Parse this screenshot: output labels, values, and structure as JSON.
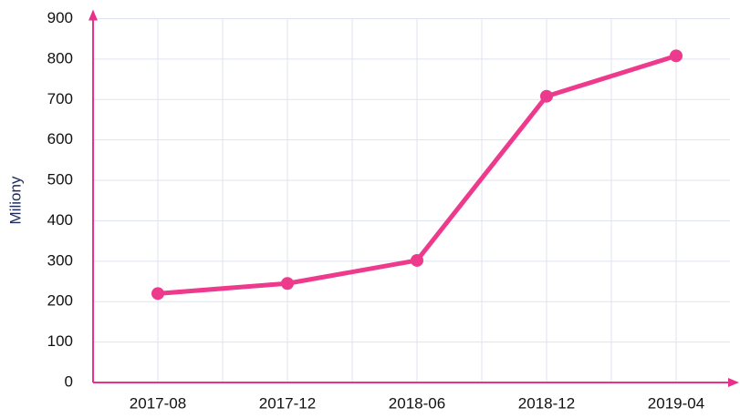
{
  "chart_data": {
    "type": "line",
    "y_label": "Miliony",
    "categories": [
      "2017-08",
      "2017-12",
      "2018-06",
      "2018-12",
      "2019-04"
    ],
    "series": [
      {
        "name": "Miliony",
        "color": "#ee3a8c",
        "values": [
          220,
          245,
          302,
          708,
          808
        ]
      }
    ],
    "ylim": [
      0,
      900
    ],
    "yticks": [
      0,
      100,
      200,
      300,
      400,
      500,
      600,
      700,
      800,
      900
    ],
    "grid": true,
    "axis_color": "#e8318a"
  }
}
